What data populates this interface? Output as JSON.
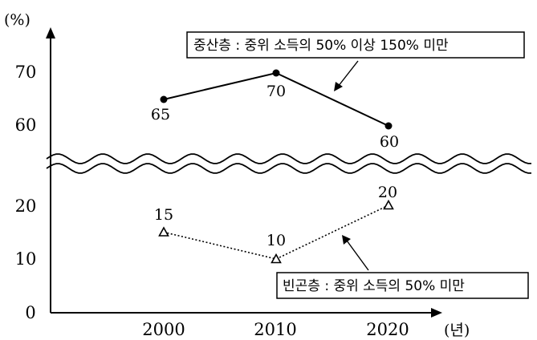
{
  "chart_data": {
    "type": "line",
    "y_unit": "(%)",
    "x_unit": "(년)",
    "categories": [
      "2000",
      "2010",
      "2020"
    ],
    "y_ticks_upper": [
      "60",
      "70"
    ],
    "y_ticks_lower": [
      "0",
      "10",
      "20"
    ],
    "axis_break": true,
    "series": [
      {
        "name": "중산층 : 중위 소득의 50% 이상 150% 미만",
        "values": [
          65,
          70,
          60
        ],
        "value_labels": [
          "65",
          "70",
          "60"
        ],
        "marker": "filled-circle",
        "line_style": "solid"
      },
      {
        "name": "빈곤층 : 중위 소득의 50% 미만",
        "values": [
          15,
          10,
          20
        ],
        "value_labels": [
          "15",
          "10",
          "20"
        ],
        "marker": "open-triangle",
        "line_style": "dotted"
      }
    ]
  }
}
